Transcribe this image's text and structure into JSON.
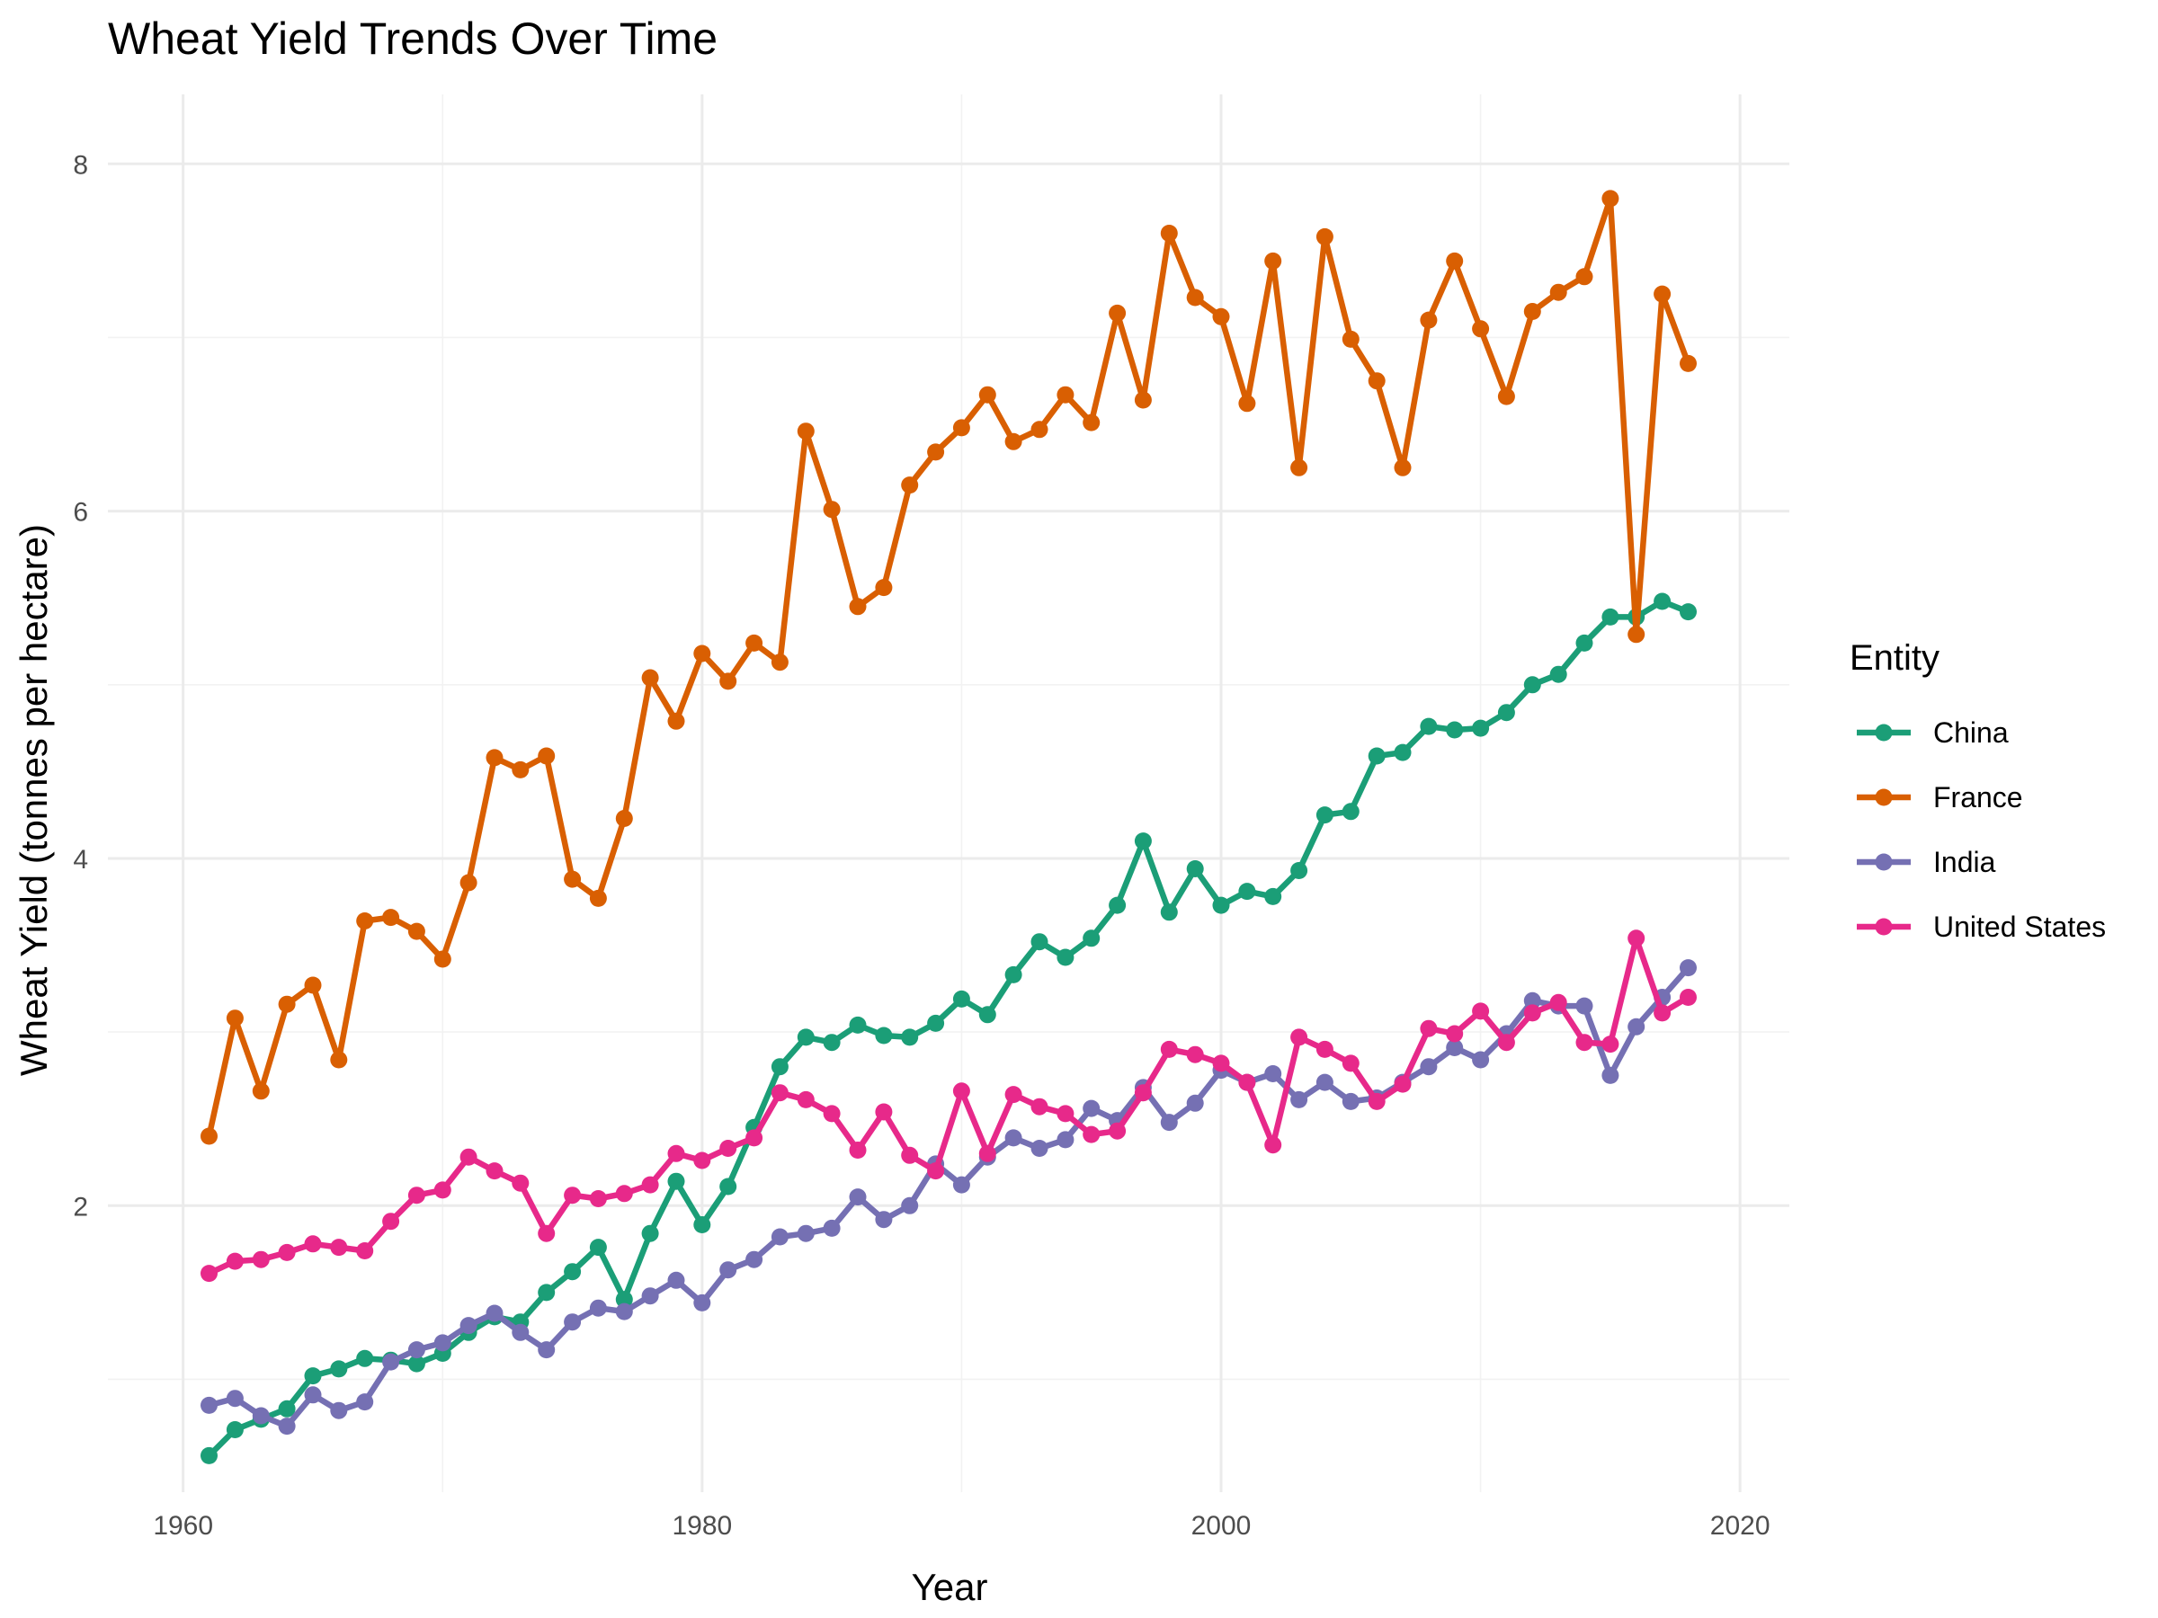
{
  "chart_data": {
    "type": "line",
    "title": "Wheat Yield Trends Over Time",
    "xlabel": "Year",
    "ylabel": "Wheat Yield (tonnes per hectare)",
    "xlim": [
      1957.1,
      2021.9
    ],
    "ylim": [
      0.35,
      8.4
    ],
    "x_ticks": [
      1960,
      1980,
      2000,
      2020
    ],
    "y_ticks": [
      2,
      4,
      6,
      8
    ],
    "grid": true,
    "legend": {
      "title": "Entity",
      "placement": "right"
    },
    "x": [
      1961,
      1962,
      1963,
      1964,
      1965,
      1966,
      1967,
      1968,
      1969,
      1970,
      1971,
      1972,
      1973,
      1974,
      1975,
      1976,
      1977,
      1978,
      1979,
      1980,
      1981,
      1982,
      1983,
      1984,
      1985,
      1986,
      1987,
      1988,
      1989,
      1990,
      1991,
      1992,
      1993,
      1994,
      1995,
      1996,
      1997,
      1998,
      1999,
      2000,
      2001,
      2002,
      2003,
      2004,
      2005,
      2006,
      2007,
      2008,
      2009,
      2010,
      2011,
      2012,
      2013,
      2014,
      2015,
      2016,
      2017,
      2018
    ],
    "series": [
      {
        "name": "China",
        "color": "#1b9e77",
        "values": [
          0.56,
          0.71,
          0.77,
          0.83,
          1.02,
          1.06,
          1.12,
          1.11,
          1.09,
          1.15,
          1.27,
          1.36,
          1.33,
          1.5,
          1.62,
          1.76,
          1.46,
          1.84,
          2.14,
          1.89,
          2.11,
          2.45,
          2.8,
          2.97,
          2.94,
          3.04,
          2.98,
          2.97,
          3.05,
          3.19,
          3.1,
          3.33,
          3.52,
          3.43,
          3.54,
          3.73,
          4.1,
          3.69,
          3.94,
          3.73,
          3.81,
          3.78,
          3.93,
          4.25,
          4.27,
          4.59,
          4.61,
          4.76,
          4.74,
          4.75,
          4.84,
          5.0,
          5.06,
          5.24,
          5.39,
          5.39,
          5.48,
          5.42
        ]
      },
      {
        "name": "France",
        "color": "#d95f02",
        "values": [
          2.4,
          3.08,
          2.66,
          3.16,
          3.27,
          2.84,
          3.64,
          3.66,
          3.58,
          3.42,
          3.86,
          4.58,
          4.51,
          4.59,
          3.88,
          3.77,
          4.23,
          5.04,
          4.79,
          5.18,
          5.02,
          5.24,
          5.13,
          6.46,
          6.01,
          5.45,
          5.56,
          6.15,
          6.34,
          6.48,
          6.67,
          6.4,
          6.47,
          6.67,
          6.51,
          7.14,
          6.64,
          7.6,
          7.23,
          7.12,
          6.62,
          7.44,
          6.25,
          7.58,
          6.99,
          6.75,
          6.25,
          7.1,
          7.44,
          7.05,
          6.66,
          7.15,
          7.26,
          7.35,
          7.8,
          5.29,
          7.25,
          6.85
        ]
      },
      {
        "name": "India",
        "color": "#7570b3",
        "values": [
          0.85,
          0.89,
          0.79,
          0.73,
          0.91,
          0.82,
          0.87,
          1.1,
          1.17,
          1.21,
          1.31,
          1.38,
          1.27,
          1.17,
          1.33,
          1.41,
          1.39,
          1.48,
          1.57,
          1.44,
          1.63,
          1.69,
          1.82,
          1.84,
          1.87,
          2.05,
          1.92,
          2.0,
          2.24,
          2.12,
          2.28,
          2.39,
          2.33,
          2.38,
          2.56,
          2.49,
          2.68,
          2.48,
          2.59,
          2.78,
          2.71,
          2.76,
          2.61,
          2.71,
          2.6,
          2.62,
          2.71,
          2.8,
          2.91,
          2.84,
          2.99,
          3.18,
          3.15,
          3.15,
          2.75,
          3.03,
          3.2,
          3.37
        ]
      },
      {
        "name": "United States",
        "color": "#e7298a",
        "values": [
          1.61,
          1.68,
          1.69,
          1.73,
          1.78,
          1.76,
          1.74,
          1.91,
          2.06,
          2.09,
          2.28,
          2.2,
          2.13,
          1.84,
          2.06,
          2.04,
          2.07,
          2.12,
          2.3,
          2.26,
          2.33,
          2.39,
          2.65,
          2.61,
          2.53,
          2.32,
          2.54,
          2.29,
          2.2,
          2.66,
          2.3,
          2.64,
          2.57,
          2.53,
          2.41,
          2.43,
          2.65,
          2.9,
          2.87,
          2.82,
          2.71,
          2.35,
          2.97,
          2.9,
          2.82,
          2.6,
          2.7,
          3.02,
          2.99,
          3.12,
          2.94,
          3.11,
          3.17,
          2.94,
          2.93,
          3.54,
          3.11,
          3.2
        ]
      }
    ]
  }
}
